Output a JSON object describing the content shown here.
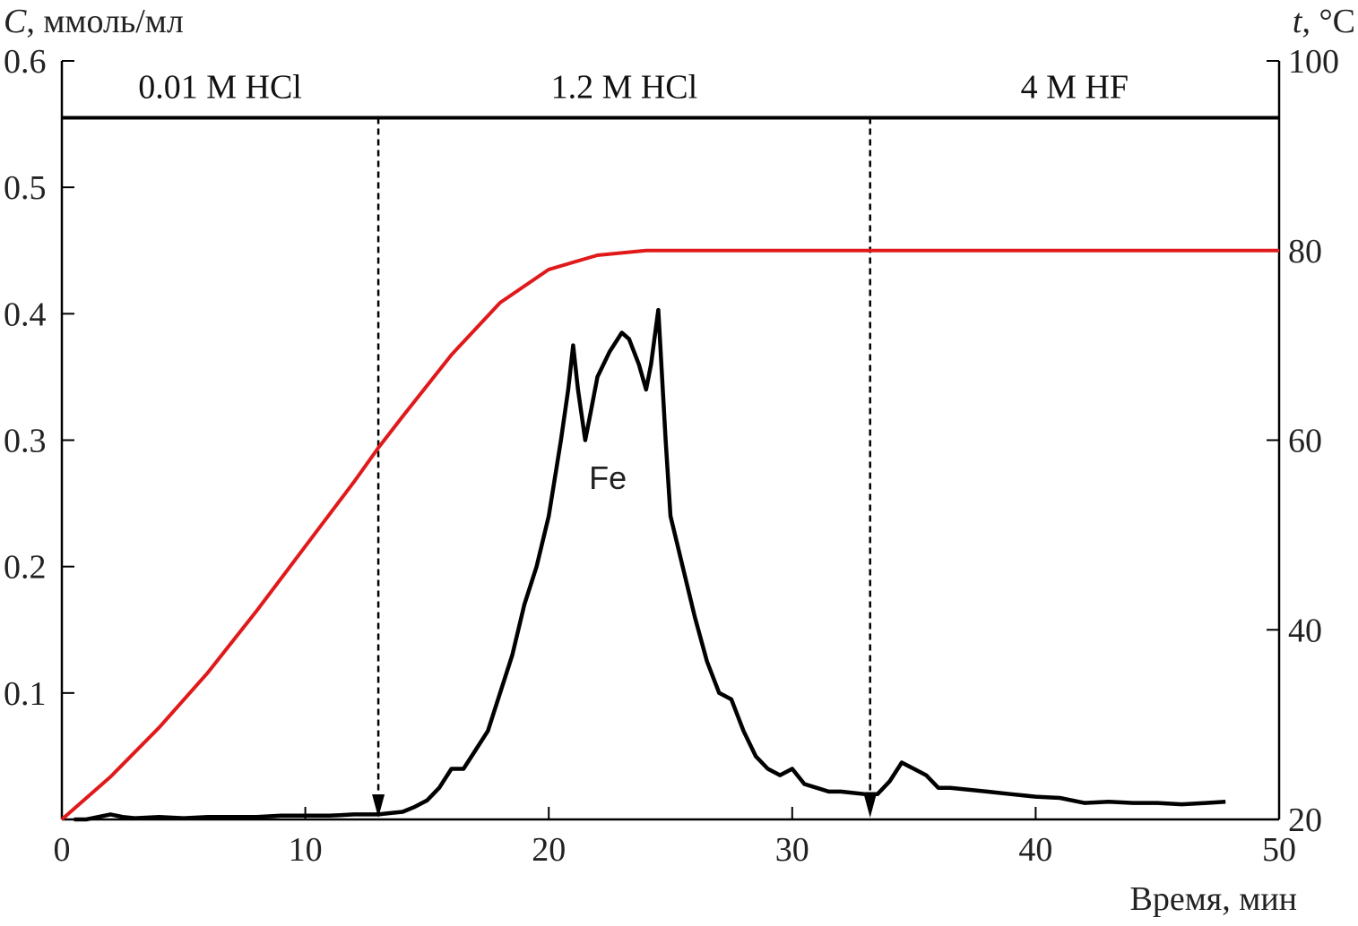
{
  "chart_data": {
    "type": "line",
    "x_axis": {
      "label": "Время, мин",
      "range": [
        0,
        50
      ],
      "ticks": [
        0,
        10,
        20,
        30,
        40,
        50
      ],
      "tick_labels": [
        "0",
        "10",
        "20",
        "30",
        "40",
        "50"
      ]
    },
    "y_left_axis": {
      "label_symbol": "C",
      "label_units": ", ммоль/мл",
      "range": [
        0,
        0.6
      ],
      "ticks": [
        0.1,
        0.2,
        0.3,
        0.4,
        0.5,
        0.6
      ],
      "tick_labels": [
        "0.1",
        "0.2",
        "0.3",
        "0.4",
        "0.5",
        "0.6"
      ]
    },
    "y_right_axis": {
      "label_symbol": "t",
      "label_units": ", °C",
      "range": [
        20,
        100
      ],
      "ticks": [
        20,
        40,
        60,
        80,
        100
      ],
      "tick_labels": [
        "20",
        "40",
        "60",
        "80",
        "100"
      ]
    },
    "eluent_zones": [
      {
        "label": "0.01 M HCl",
        "x_start": 0,
        "x_end": 13
      },
      {
        "label": "1.2 M HCl",
        "x_start": 13,
        "x_end": 33.2
      },
      {
        "label": "4 M HF",
        "x_start": 33.2,
        "x_end": 50
      }
    ],
    "eluent_switch_times": [
      13,
      33.2
    ],
    "series": [
      {
        "axis": "left",
        "color": "#000000",
        "points": [
          [
            0.5,
            0.0
          ],
          [
            1,
            0.0
          ],
          [
            1.5,
            0.002
          ],
          [
            2,
            0.004
          ],
          [
            2.5,
            0.002
          ],
          [
            3,
            0.001
          ],
          [
            4,
            0.002
          ],
          [
            5,
            0.001
          ],
          [
            6,
            0.002
          ],
          [
            7,
            0.002
          ],
          [
            8,
            0.002
          ],
          [
            9,
            0.003
          ],
          [
            10,
            0.003
          ],
          [
            11,
            0.003
          ],
          [
            12,
            0.004
          ],
          [
            13,
            0.004
          ],
          [
            13.5,
            0.005
          ],
          [
            14,
            0.006
          ],
          [
            14.5,
            0.01
          ],
          [
            15,
            0.015
          ],
          [
            15.5,
            0.025
          ],
          [
            16,
            0.04
          ],
          [
            16.5,
            0.04
          ],
          [
            17,
            0.055
          ],
          [
            17.5,
            0.07
          ],
          [
            18,
            0.1
          ],
          [
            18.5,
            0.13
          ],
          [
            19,
            0.17
          ],
          [
            19.5,
            0.2
          ],
          [
            20,
            0.24
          ],
          [
            20.5,
            0.3
          ],
          [
            20.8,
            0.34
          ],
          [
            21,
            0.375
          ],
          [
            21.2,
            0.34
          ],
          [
            21.5,
            0.3
          ],
          [
            21.7,
            0.32
          ],
          [
            22,
            0.35
          ],
          [
            22.5,
            0.37
          ],
          [
            23,
            0.385
          ],
          [
            23.3,
            0.38
          ],
          [
            23.7,
            0.36
          ],
          [
            24,
            0.34
          ],
          [
            24.2,
            0.36
          ],
          [
            24.5,
            0.403
          ],
          [
            24.8,
            0.3
          ],
          [
            25,
            0.24
          ],
          [
            25.5,
            0.2
          ],
          [
            26,
            0.16
          ],
          [
            26.5,
            0.125
          ],
          [
            27,
            0.1
          ],
          [
            27.5,
            0.095
          ],
          [
            28,
            0.07
          ],
          [
            28.5,
            0.05
          ],
          [
            29,
            0.04
          ],
          [
            29.5,
            0.035
          ],
          [
            30,
            0.04
          ],
          [
            30.5,
            0.028
          ],
          [
            31,
            0.025
          ],
          [
            31.5,
            0.022
          ],
          [
            32,
            0.022
          ],
          [
            33,
            0.02
          ],
          [
            33.5,
            0.02
          ],
          [
            34,
            0.03
          ],
          [
            34.5,
            0.045
          ],
          [
            35,
            0.04
          ],
          [
            35.5,
            0.035
          ],
          [
            36,
            0.025
          ],
          [
            36.5,
            0.025
          ],
          [
            37,
            0.024
          ],
          [
            38,
            0.022
          ],
          [
            39,
            0.02
          ],
          [
            40,
            0.018
          ],
          [
            41,
            0.017
          ],
          [
            42,
            0.013
          ],
          [
            43,
            0.014
          ],
          [
            44,
            0.013
          ],
          [
            45,
            0.013
          ],
          [
            46,
            0.012
          ],
          [
            47,
            0.013
          ],
          [
            47.8,
            0.014
          ]
        ]
      },
      {
        "axis": "right",
        "color": "#e0191b",
        "points": [
          [
            0,
            20
          ],
          [
            2,
            24.5
          ],
          [
            4,
            29.7
          ],
          [
            6,
            35.5
          ],
          [
            8,
            42
          ],
          [
            10,
            48.8
          ],
          [
            12,
            55.6
          ],
          [
            13,
            59.2
          ],
          [
            14,
            62.5
          ],
          [
            16,
            69
          ],
          [
            18,
            74.5
          ],
          [
            20,
            78
          ],
          [
            22,
            79.5
          ],
          [
            24,
            80
          ],
          [
            30,
            80
          ],
          [
            40,
            80
          ],
          [
            50,
            80
          ]
        ]
      }
    ],
    "reference_lines": [
      {
        "name": "eluent-bar",
        "y_left": 0.555
      }
    ],
    "annotations": [
      {
        "text": "Fe",
        "x": 22.5,
        "y": 0.27
      }
    ]
  }
}
